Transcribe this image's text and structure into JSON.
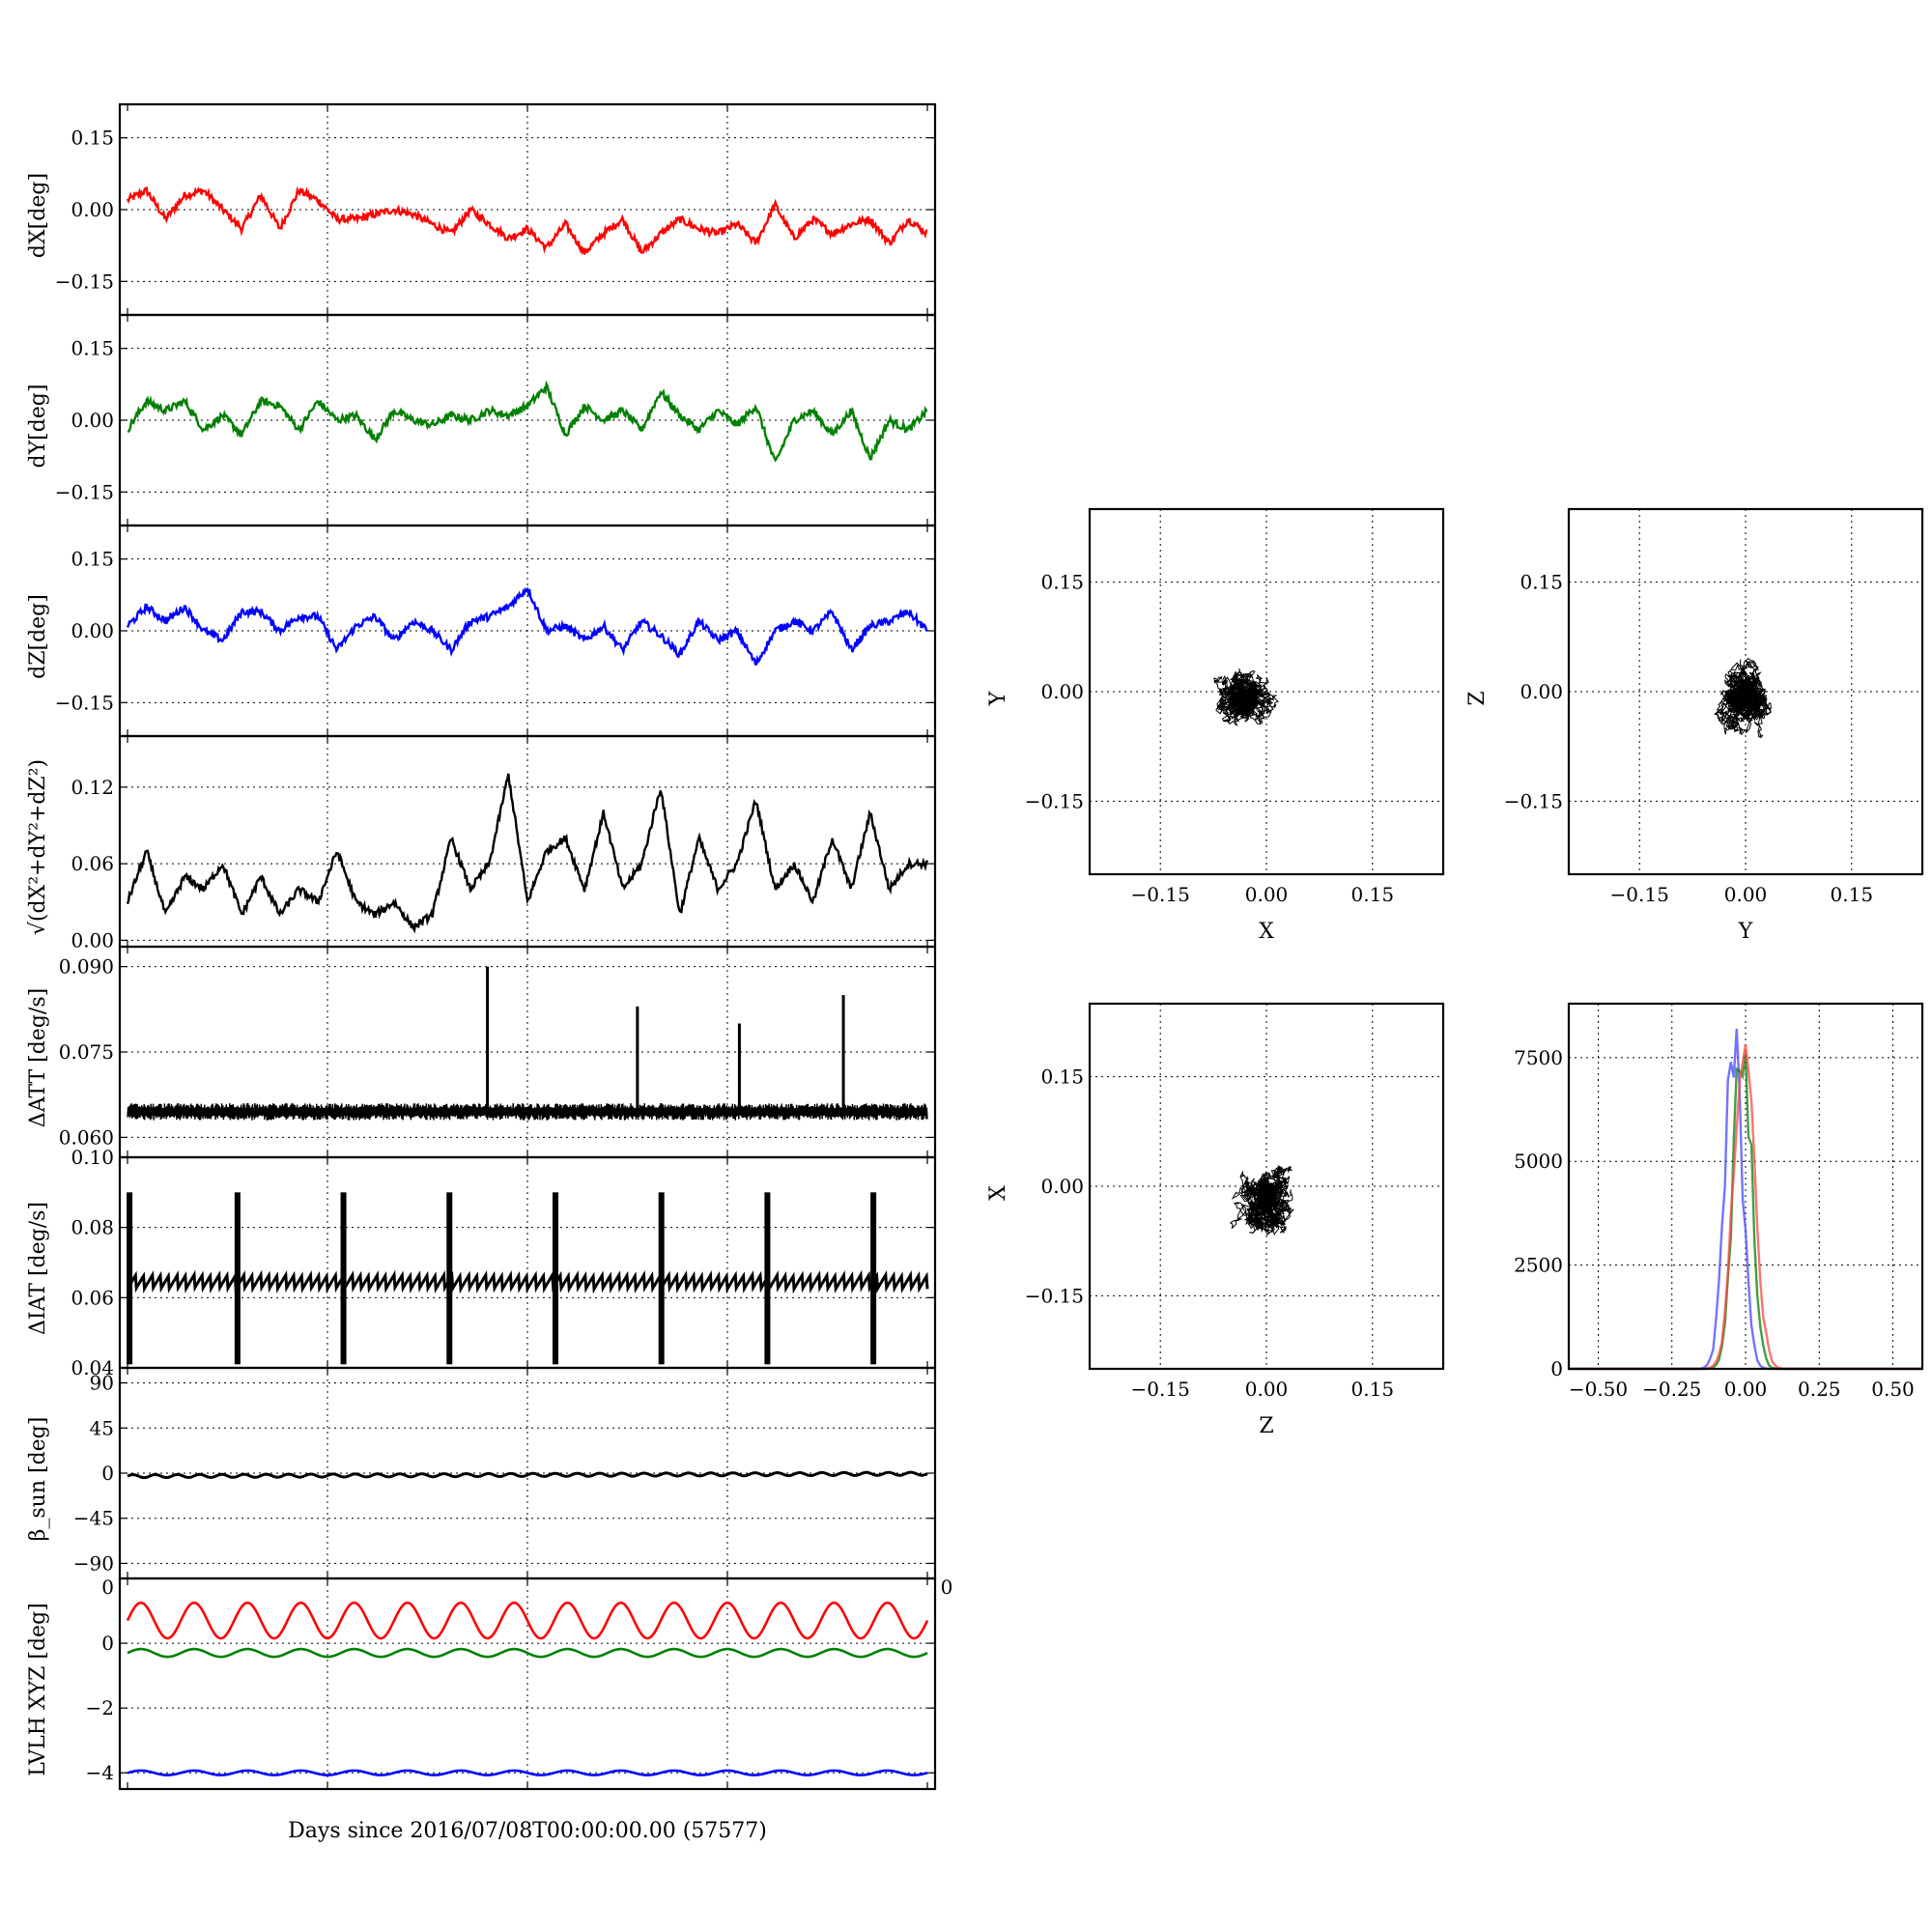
{
  "chart_data": [
    {
      "id": "dx",
      "type": "line",
      "ylabel": "dX[deg]",
      "ylim": [
        -0.22,
        0.22
      ],
      "yticks": [
        -0.15,
        0.0,
        0.15
      ],
      "ytick_labels": [
        "−0.15",
        "0.00",
        "0.15"
      ],
      "series": [
        {
          "color": "#ff0000",
          "values": [
            0.02,
            0.04,
            -0.02,
            0.03,
            0.04,
            0.0,
            -0.04,
            0.03,
            -0.04,
            0.04,
            0.02,
            -0.02,
            -0.02,
            -0.01,
            0.0,
            -0.01,
            -0.03,
            -0.05,
            0.0,
            -0.03,
            -0.06,
            -0.04,
            -0.08,
            -0.03,
            -0.09,
            -0.05,
            -0.02,
            -0.09,
            -0.05,
            -0.02,
            -0.04,
            -0.05,
            -0.03,
            -0.07,
            0.01,
            -0.06,
            -0.02,
            -0.05,
            -0.03,
            -0.02,
            -0.07,
            -0.02,
            -0.05
          ]
        }
      ]
    },
    {
      "id": "dy",
      "type": "line",
      "ylabel": "dY[deg]",
      "ylim": [
        -0.22,
        0.22
      ],
      "yticks": [
        -0.15,
        0.0,
        0.15
      ],
      "ytick_labels": [
        "−0.15",
        "0.00",
        "0.15"
      ],
      "series": [
        {
          "color": "#008000",
          "values": [
            -0.02,
            0.04,
            0.02,
            0.04,
            -0.02,
            0.01,
            -0.03,
            0.04,
            0.03,
            -0.02,
            0.04,
            0.0,
            0.01,
            -0.04,
            0.02,
            0.0,
            -0.01,
            0.01,
            0.0,
            0.02,
            0.01,
            0.03,
            0.07,
            -0.03,
            0.03,
            0.0,
            0.02,
            -0.02,
            0.06,
            0.01,
            -0.02,
            0.02,
            -0.01,
            0.03,
            -0.09,
            0.0,
            0.02,
            -0.03,
            0.02,
            -0.08,
            0.0,
            -0.02,
            0.02
          ]
        }
      ]
    },
    {
      "id": "dz",
      "type": "line",
      "ylabel": "dZ[deg]",
      "ylim": [
        -0.22,
        0.22
      ],
      "yticks": [
        -0.15,
        0.0,
        0.15
      ],
      "ytick_labels": [
        "−0.15",
        "0.00",
        "0.15"
      ],
      "series": [
        {
          "color": "#0000ff",
          "values": [
            0.01,
            0.05,
            0.02,
            0.05,
            0.0,
            -0.02,
            0.04,
            0.04,
            0.0,
            0.03,
            0.03,
            -0.04,
            0.01,
            0.03,
            -0.02,
            0.02,
            0.0,
            -0.04,
            0.02,
            0.03,
            0.05,
            0.09,
            0.0,
            0.01,
            -0.02,
            0.01,
            -0.04,
            0.02,
            -0.01,
            -0.05,
            0.02,
            -0.02,
            0.0,
            -0.07,
            0.0,
            0.02,
            0.0,
            0.04,
            -0.04,
            0.01,
            0.02,
            0.04,
            0.0
          ]
        }
      ]
    },
    {
      "id": "dr",
      "type": "line",
      "ylabel": "√(dX²+dY²+dZ²)",
      "ylim": [
        -0.005,
        0.16
      ],
      "yticks": [
        0.0,
        0.06,
        0.12
      ],
      "ytick_labels": [
        "0.00",
        "0.06",
        "0.12"
      ],
      "series": [
        {
          "color": "#000000",
          "values": [
            0.03,
            0.07,
            0.02,
            0.05,
            0.04,
            0.06,
            0.02,
            0.05,
            0.02,
            0.04,
            0.03,
            0.07,
            0.03,
            0.02,
            0.03,
            0.01,
            0.02,
            0.08,
            0.04,
            0.06,
            0.13,
            0.03,
            0.07,
            0.08,
            0.04,
            0.1,
            0.04,
            0.06,
            0.12,
            0.02,
            0.08,
            0.04,
            0.06,
            0.11,
            0.04,
            0.06,
            0.03,
            0.08,
            0.04,
            0.1,
            0.04,
            0.06,
            0.06
          ]
        }
      ]
    },
    {
      "id": "att",
      "type": "line",
      "ylabel": "ΔATT [deg/s]",
      "ylim": [
        0.0565,
        0.0935
      ],
      "yticks": [
        0.06,
        0.075,
        0.09
      ],
      "ytick_labels": [
        "0.060",
        "0.075",
        "0.090"
      ],
      "baseline": 0.0645,
      "band": 0.0015,
      "spikes": [
        {
          "x": 18,
          "v": 0.09
        },
        {
          "x": 25.5,
          "v": 0.083
        },
        {
          "x": 30.6,
          "v": 0.08
        },
        {
          "x": 35.8,
          "v": 0.085
        }
      ]
    },
    {
      "id": "iat",
      "type": "line",
      "ylabel": "ΔIAT [deg/s]",
      "ylim": [
        0.04,
        0.1
      ],
      "yticks": [
        0.04,
        0.06,
        0.08,
        0.1
      ],
      "ytick_labels": [
        "0.04",
        "0.06",
        "0.08",
        "0.10"
      ],
      "baseline": 0.065,
      "drops": [
        0.1,
        5.5,
        10.8,
        16.1,
        21.4,
        26.7,
        32.0,
        37.3
      ],
      "drop_high": 0.09,
      "drop_low": 0.041
    },
    {
      "id": "beta",
      "type": "line",
      "ylabel": "β_sun [deg]",
      "ylim": [
        -105,
        105
      ],
      "yticks": [
        -90,
        -45,
        0,
        45,
        90
      ],
      "ytick_labels": [
        "−90",
        "−45",
        "0",
        "45",
        "90"
      ],
      "series": [
        {
          "color": "#000000",
          "mean": -3,
          "amp": 1.5
        }
      ]
    },
    {
      "id": "lvlh",
      "type": "line",
      "ylabel": "LVLH XYZ [deg]",
      "xlabel": "Days since 2016/07/08T00:00:00.00 (57577)",
      "ylim": [
        -4.5,
        2
      ],
      "yticks": [
        -4,
        -2,
        0
      ],
      "ytick_labels": [
        "−4",
        "−2",
        "0"
      ],
      "corner_label": "0",
      "corner_label2": "0",
      "series": [
        {
          "color": "#ff0000",
          "mean": 0.7,
          "amp": 0.55,
          "cycles": 15
        },
        {
          "color": "#008000",
          "mean": -0.3,
          "amp": 0.12,
          "cycles": 15
        },
        {
          "color": "#0000ff",
          "mean": -4.0,
          "amp": 0.07,
          "cycles": 15
        }
      ]
    },
    {
      "id": "sxy",
      "type": "scatter",
      "xlabel": "X",
      "ylabel": "Y",
      "xlim": [
        -0.25,
        0.25
      ],
      "ylim": [
        -0.25,
        0.25
      ],
      "ticks": [
        -0.15,
        0.0,
        0.15
      ],
      "tick_labels": [
        "−0.15",
        "0.00",
        "0.15"
      ],
      "center": [
        -0.02,
        -0.01
      ],
      "spread": [
        0.04,
        0.035
      ],
      "corr": -0.2
    },
    {
      "id": "syz",
      "type": "scatter",
      "xlabel": "Y",
      "ylabel": "Z",
      "xlim": [
        -0.25,
        0.25
      ],
      "ylim": [
        -0.25,
        0.25
      ],
      "ticks": [
        -0.15,
        0.0,
        0.15
      ],
      "tick_labels": [
        "−0.15",
        "0.00",
        "0.15"
      ],
      "center": [
        0.0,
        0.0
      ],
      "spread": [
        0.035,
        0.03
      ],
      "corr": 0.6
    },
    {
      "id": "szx",
      "type": "scatter",
      "xlabel": "Z",
      "ylabel": "X",
      "xlim": [
        -0.25,
        0.25
      ],
      "ylim": [
        -0.25,
        0.25
      ],
      "ticks": [
        -0.15,
        0.0,
        0.15
      ],
      "tick_labels": [
        "−0.15",
        "0.00",
        "0.15"
      ],
      "center": [
        0.0,
        -0.02
      ],
      "spread": [
        0.04,
        0.035
      ],
      "corr": 0.7
    },
    {
      "id": "hist",
      "type": "histogram",
      "xlim": [
        -0.6,
        0.6
      ],
      "ylim": [
        0,
        8800
      ],
      "xticks": [
        -0.5,
        -0.25,
        0.0,
        0.25,
        0.5
      ],
      "xtick_labels": [
        "−0.50",
        "−0.25",
        "0.00",
        "0.25",
        "0.50"
      ],
      "yticks": [
        0,
        2500,
        5000,
        7500
      ],
      "ytick_labels": [
        "0",
        "2500",
        "5000",
        "7500"
      ],
      "series": [
        {
          "color": "#4444ff",
          "center": -0.04,
          "width": 0.03,
          "peak": 7800
        },
        {
          "color": "#008000",
          "center": -0.01,
          "width": 0.03,
          "peak": 8200
        },
        {
          "color": "#ff4444",
          "center": -0.005,
          "width": 0.035,
          "peak": 7600
        }
      ]
    }
  ]
}
